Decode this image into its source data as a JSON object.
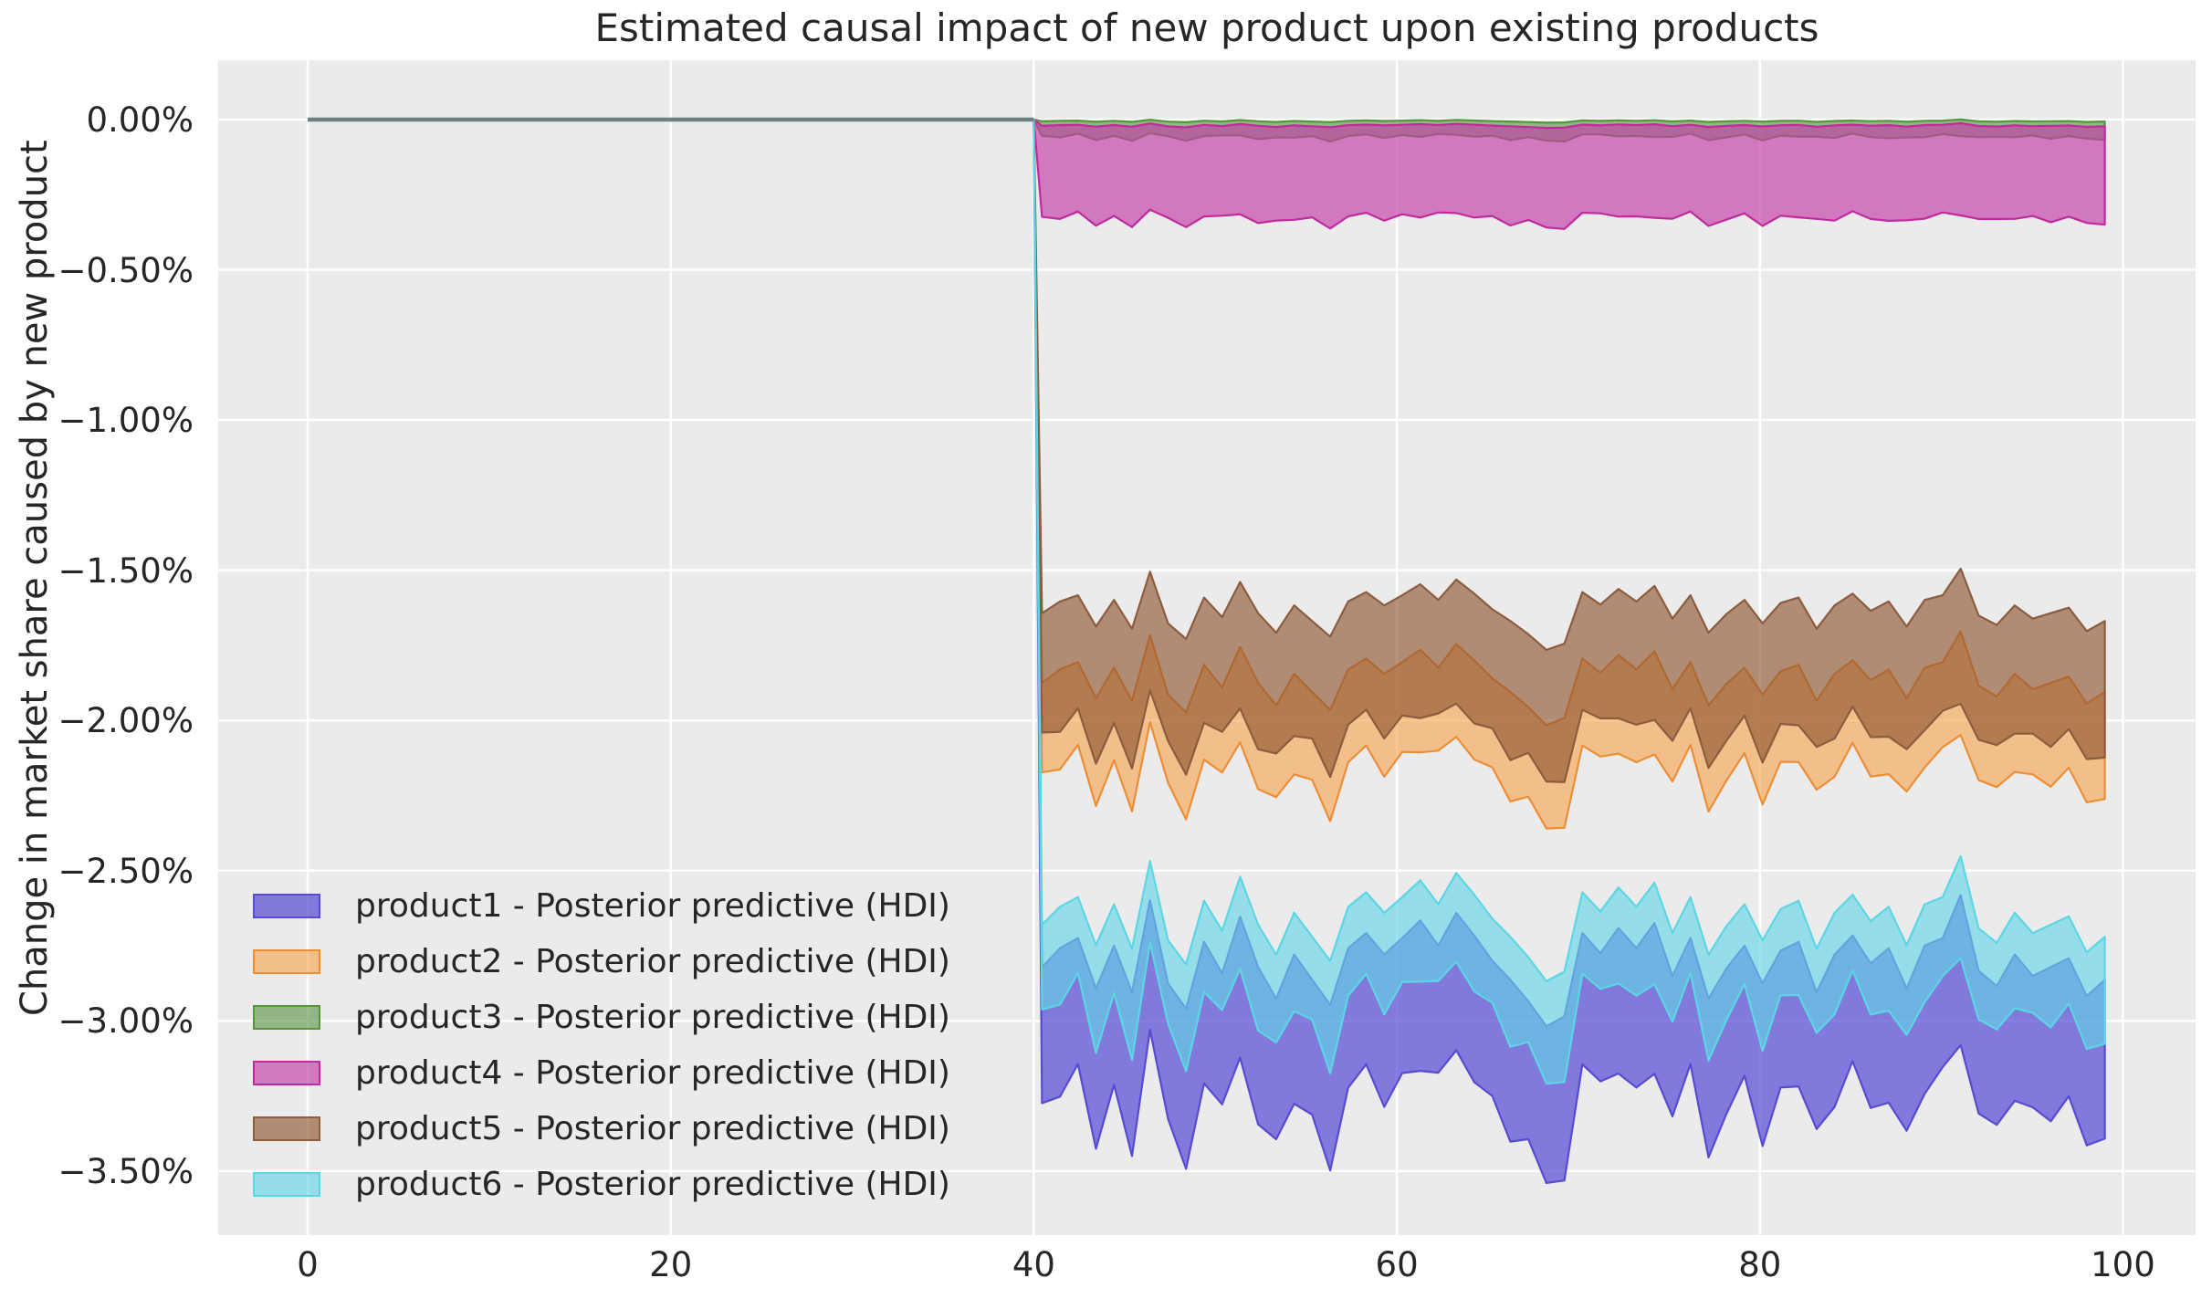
{
  "styles": {
    "figure_bg": "#ffffff",
    "plot_bg": "#ebebeb",
    "grid_color": "#ffffff",
    "text_color": "#262626",
    "pre_line_color": "#6d8081"
  },
  "chart_data": {
    "type": "area",
    "title": "Estimated causal impact of new product upon existing products",
    "ylabel": "Change in market share caused by new product",
    "xlabel": "",
    "grid": true,
    "legend_position": "lower left",
    "xlim": [
      -4.93,
      104.0
    ],
    "ylim": [
      -3.713,
      0.1975
    ],
    "x_ticks": [
      {
        "value": 0,
        "label": "0"
      },
      {
        "value": 20,
        "label": "20"
      },
      {
        "value": 40,
        "label": "40"
      },
      {
        "value": 60,
        "label": "60"
      },
      {
        "value": 80,
        "label": "80"
      },
      {
        "value": 100,
        "label": "100"
      }
    ],
    "y_ticks": [
      {
        "value": 0.0,
        "label": "0.00%"
      },
      {
        "value": -0.5,
        "label": "−0.50%"
      },
      {
        "value": -1.0,
        "label": "−1.00%"
      },
      {
        "value": -1.5,
        "label": "−1.50%"
      },
      {
        "value": -2.0,
        "label": "−2.00%"
      },
      {
        "value": -2.5,
        "label": "−2.50%"
      },
      {
        "value": -3.0,
        "label": "−3.00%"
      },
      {
        "value": -3.5,
        "label": "−3.50%"
      }
    ],
    "treatment_x": 40,
    "pre_period": {
      "x_start": 0,
      "x_end": 40,
      "y": 0.0
    },
    "post_x_start": 40.45,
    "post_x_end": 99,
    "n_points": 60,
    "noise": [
      -0.05,
      0.1,
      0.18,
      -0.22,
      0.12,
      -0.25,
      0.48,
      -0.18,
      -0.38,
      0.15,
      -0.1,
      0.35,
      -0.05,
      -0.3,
      0.05,
      -0.15,
      -0.35,
      0.1,
      0.22,
      0.05,
      0.18,
      0.32,
      0.12,
      0.38,
      0.2,
      0.0,
      -0.15,
      -0.32,
      -0.52,
      -0.44,
      0.22,
      0.06,
      0.26,
      0.1,
      0.3,
      -0.12,
      0.18,
      -0.3,
      -0.06,
      0.12,
      -0.18,
      0.08,
      0.15,
      -0.25,
      0.05,
      0.2,
      -0.02,
      0.1,
      -0.22,
      0.12,
      0.18,
      0.52,
      -0.08,
      -0.2,
      0.05,
      -0.12,
      -0.05,
      0.02,
      -0.28,
      -0.15
    ],
    "noise2": [
      0.03,
      -0.02,
      0.05,
      -0.04,
      0.01,
      -0.05,
      0.02,
      0.04,
      -0.03,
      0.0,
      0.05,
      -0.01,
      -0.04,
      0.03,
      -0.02,
      0.04,
      -0.05,
      0.01,
      0.03,
      -0.03,
      0.02,
      -0.04,
      0.05,
      0.0,
      -0.02,
      0.03,
      -0.05,
      0.04,
      -0.01,
      -0.04,
      0.03,
      0.05,
      -0.02,
      0.01,
      -0.04,
      0.02,
      0.05,
      -0.03,
      0.0,
      0.04,
      -0.05,
      0.02,
      -0.01,
      0.04,
      -0.03,
      0.05,
      0.0,
      -0.04,
      0.02,
      -0.02,
      0.04,
      -0.05,
      0.01,
      0.03,
      -0.01,
      0.05,
      -0.03,
      0.02,
      0.0,
      -0.04
    ],
    "series": [
      {
        "name": "product1",
        "label": "product1 - Posterior predictive (HDI)",
        "fill": "rgba(88,76,214,0.72)",
        "line": "#564bd2",
        "hi_base": -2.8,
        "hi_scale": 0.42,
        "lo_base": -3.28,
        "lo_scale": 0.48,
        "width_jitter": 1.0
      },
      {
        "name": "product2",
        "label": "product2 - Posterior predictive (HDI)",
        "fill": "rgba(246,157,65,0.58)",
        "line": "#ed8d36",
        "hi_base": -1.86,
        "hi_scale": 0.3,
        "lo_base": -2.18,
        "lo_scale": 0.33,
        "width_jitter": 0.8
      },
      {
        "name": "product3",
        "label": "product3 - Posterior predictive (HDI)",
        "fill": "rgba(90,150,70,0.62)",
        "line": "#55963b",
        "hi_base": -0.005,
        "hi_scale": 0.01,
        "lo_base": -0.058,
        "lo_scale": 0.02,
        "width_jitter": 0.15
      },
      {
        "name": "product4",
        "label": "product4 - Posterior predictive (HDI)",
        "fill": "rgba(198,60,168,0.66)",
        "line": "#c2299e",
        "hi_base": -0.02,
        "hi_scale": 0.015,
        "lo_base": -0.33,
        "lo_scale": 0.05,
        "width_jitter": 0.3
      },
      {
        "name": "product5",
        "label": "product5 - Posterior predictive (HDI)",
        "fill": "rgba(140,82,45,0.62)",
        "line": "#8d5c3e",
        "hi_base": -1.63,
        "hi_scale": 0.26,
        "lo_base": -2.05,
        "lo_scale": 0.28,
        "width_jitter": 0.8
      },
      {
        "name": "product6",
        "label": "product6 - Posterior predictive (HDI)",
        "fill": "rgba(100,215,232,0.64)",
        "line": "#5cd6e4",
        "hi_base": -2.66,
        "hi_scale": 0.4,
        "lo_base": -2.97,
        "lo_scale": 0.44,
        "width_jitter": 1.0
      }
    ]
  }
}
